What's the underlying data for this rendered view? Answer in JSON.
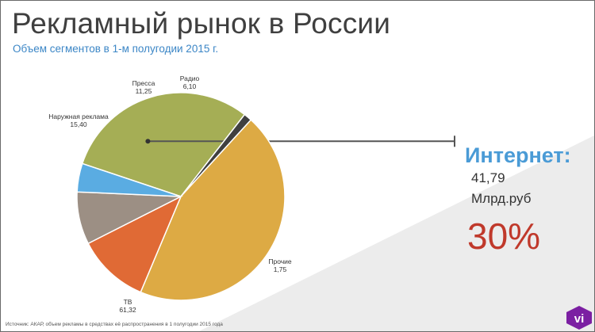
{
  "title": "Рекламный рынок в России",
  "subtitle": "Объем сегментов в 1-м полугодии 2015 г.",
  "callout": {
    "title": "Интернет:",
    "value": "41,79",
    "unit": "Млрд.руб",
    "percent": "30%"
  },
  "source": "Источник: АКАР, объем рекламы в средствах её распространения в 1 полугодии 2015 года",
  "logo_text": "vi",
  "colors": {
    "title": "#3f3f3f",
    "subtitle": "#3b86c6",
    "callout_title": "#4a9bd6",
    "percent": "#c0392b",
    "logo": "#7b1fa2"
  },
  "chart_data": {
    "type": "pie",
    "title": "",
    "slices": [
      {
        "name": "Интернет",
        "value": 41.79,
        "label_value": "",
        "color": "#a5ae55"
      },
      {
        "name": "Прочие",
        "value": 1.75,
        "label_value": "1,75",
        "color": "#404040"
      },
      {
        "name": "ТВ",
        "value": 61.32,
        "label_value": "61,32",
        "color": "#ddaa44"
      },
      {
        "name": "Наружная реклама",
        "value": 15.4,
        "label_value": "15,40",
        "color": "#e06a35"
      },
      {
        "name": "Пресса",
        "value": 11.25,
        "label_value": "11,25",
        "color": "#9c8f84"
      },
      {
        "name": "Радио",
        "value": 6.1,
        "label_value": "6,10",
        "color": "#5aace2"
      }
    ]
  }
}
